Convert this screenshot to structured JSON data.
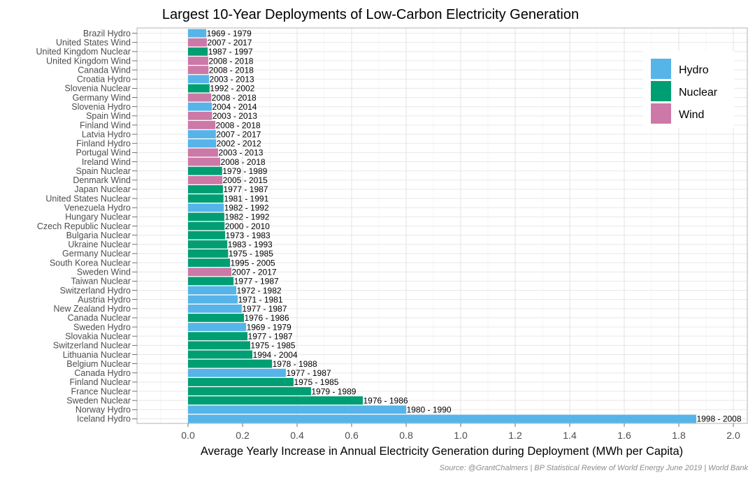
{
  "chart_data": {
    "type": "bar",
    "orientation": "horizontal",
    "title": "Largest 10-Year Deployments of Low-Carbon Electricity Generation",
    "xlabel": "Average Yearly Increase in Annual Electricity Generation during Deployment (MWh per Capita)",
    "ylabel": "",
    "xlim": [
      -0.19,
      2.06
    ],
    "xticks": [
      "0.0",
      "0.2",
      "0.4",
      "0.6",
      "0.8",
      "1.0",
      "1.2",
      "1.4",
      "1.6",
      "1.8",
      "2.0"
    ],
    "grid": true,
    "legend": {
      "position": "top-right",
      "entries": [
        {
          "name": "Hydro",
          "color": "#56b4e9"
        },
        {
          "name": "Nuclear",
          "color": "#009e73"
        },
        {
          "name": "Wind",
          "color": "#cc79a7"
        }
      ]
    },
    "source": "Source: @GrantChalmers | BP Statistical Review of World Energy June 2019 | World Bank",
    "bars": [
      {
        "label": "Brazil Hydro",
        "type": "Hydro",
        "value": 0.067,
        "period": "1969 - 1979"
      },
      {
        "label": "United States Wind",
        "type": "Wind",
        "value": 0.069,
        "period": "2007 - 2017"
      },
      {
        "label": "United Kingdom Nuclear",
        "type": "Nuclear",
        "value": 0.072,
        "period": "1987 - 1997"
      },
      {
        "label": "United Kingdom Wind",
        "type": "Wind",
        "value": 0.074,
        "period": "2008 - 2018"
      },
      {
        "label": "Canada Wind",
        "type": "Wind",
        "value": 0.075,
        "period": "2008 - 2018"
      },
      {
        "label": "Croatia Hydro",
        "type": "Hydro",
        "value": 0.077,
        "period": "2003 - 2013"
      },
      {
        "label": "Slovenia Nuclear",
        "type": "Nuclear",
        "value": 0.079,
        "period": "1992 - 2002"
      },
      {
        "label": "Germany Wind",
        "type": "Wind",
        "value": 0.085,
        "period": "2008 - 2018"
      },
      {
        "label": "Slovenia Hydro",
        "type": "Hydro",
        "value": 0.087,
        "period": "2004 - 2014"
      },
      {
        "label": "Spain Wind",
        "type": "Wind",
        "value": 0.088,
        "period": "2003 - 2013"
      },
      {
        "label": "Finland Wind",
        "type": "Wind",
        "value": 0.1,
        "period": "2008 - 2018"
      },
      {
        "label": "Latvia Hydro",
        "type": "Hydro",
        "value": 0.102,
        "period": "2007 - 2017"
      },
      {
        "label": "Finland Hydro",
        "type": "Hydro",
        "value": 0.103,
        "period": "2002 - 2012"
      },
      {
        "label": "Portugal Wind",
        "type": "Wind",
        "value": 0.11,
        "period": "2003 - 2013"
      },
      {
        "label": "Ireland Wind",
        "type": "Wind",
        "value": 0.118,
        "period": "2008 - 2018"
      },
      {
        "label": "Spain Nuclear",
        "type": "Nuclear",
        "value": 0.125,
        "period": "1979 - 1989"
      },
      {
        "label": "Denmark Wind",
        "type": "Wind",
        "value": 0.126,
        "period": "2005 - 2015"
      },
      {
        "label": "Japan Nuclear",
        "type": "Nuclear",
        "value": 0.128,
        "period": "1977 - 1987"
      },
      {
        "label": "United States Nuclear",
        "type": "Nuclear",
        "value": 0.13,
        "period": "1981 - 1991"
      },
      {
        "label": "Venezuela Hydro",
        "type": "Hydro",
        "value": 0.131,
        "period": "1982 - 1992"
      },
      {
        "label": "Hungary Nuclear",
        "type": "Nuclear",
        "value": 0.133,
        "period": "1982 - 1992"
      },
      {
        "label": "Czech Republic Nuclear",
        "type": "Nuclear",
        "value": 0.134,
        "period": "2000 - 2010"
      },
      {
        "label": "Bulgaria Nuclear",
        "type": "Nuclear",
        "value": 0.136,
        "period": "1973 - 1983"
      },
      {
        "label": "Ukraine Nuclear",
        "type": "Nuclear",
        "value": 0.144,
        "period": "1983 - 1993"
      },
      {
        "label": "Germany Nuclear",
        "type": "Nuclear",
        "value": 0.147,
        "period": "1975 - 1985"
      },
      {
        "label": "South Korea Nuclear",
        "type": "Nuclear",
        "value": 0.154,
        "period": "1995 - 2005"
      },
      {
        "label": "Sweden Wind",
        "type": "Wind",
        "value": 0.159,
        "period": "2007 - 2017"
      },
      {
        "label": "Taiwan Nuclear",
        "type": "Nuclear",
        "value": 0.167,
        "period": "1977 - 1987"
      },
      {
        "label": "Switzerland Hydro",
        "type": "Hydro",
        "value": 0.177,
        "period": "1972 - 1982"
      },
      {
        "label": "Austria Hydro",
        "type": "Hydro",
        "value": 0.182,
        "period": "1971 - 1981"
      },
      {
        "label": "New Zealand Hydro",
        "type": "Hydro",
        "value": 0.197,
        "period": "1977 - 1987"
      },
      {
        "label": "Canada Nuclear",
        "type": "Nuclear",
        "value": 0.205,
        "period": "1976 - 1986"
      },
      {
        "label": "Sweden Hydro",
        "type": "Hydro",
        "value": 0.213,
        "period": "1969 - 1979"
      },
      {
        "label": "Slovakia Nuclear",
        "type": "Nuclear",
        "value": 0.218,
        "period": "1977 - 1987"
      },
      {
        "label": "Switzerland Nuclear",
        "type": "Nuclear",
        "value": 0.228,
        "period": "1975 - 1985"
      },
      {
        "label": "Lithuania Nuclear",
        "type": "Nuclear",
        "value": 0.236,
        "period": "1994 - 2004"
      },
      {
        "label": "Belgium Nuclear",
        "type": "Nuclear",
        "value": 0.308,
        "period": "1978 - 1988"
      },
      {
        "label": "Canada Hydro",
        "type": "Hydro",
        "value": 0.359,
        "period": "1977 - 1987"
      },
      {
        "label": "Finland Nuclear",
        "type": "Nuclear",
        "value": 0.387,
        "period": "1975 - 1985"
      },
      {
        "label": "France Nuclear",
        "type": "Nuclear",
        "value": 0.451,
        "period": "1979 - 1989"
      },
      {
        "label": "Sweden Nuclear",
        "type": "Nuclear",
        "value": 0.641,
        "period": "1976 - 1986"
      },
      {
        "label": "Norway Hydro",
        "type": "Hydro",
        "value": 0.8,
        "period": "1980 - 1990"
      },
      {
        "label": "Iceland Hydro",
        "type": "Hydro",
        "value": 1.864,
        "period": "1998 - 2008"
      }
    ]
  }
}
